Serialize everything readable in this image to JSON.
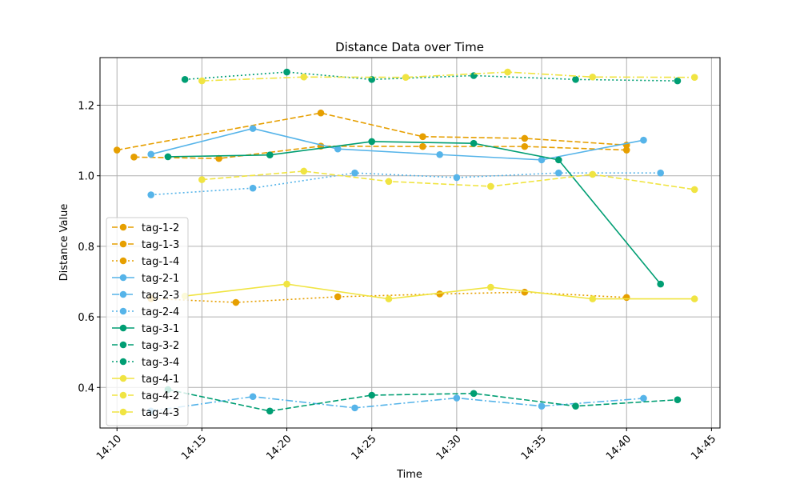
{
  "chart_data": {
    "type": "line",
    "title": "Distance Data over Time",
    "xlabel": "Time",
    "ylabel": "Distance Value",
    "xlim": [
      "14:09",
      "14:45:30"
    ],
    "ylim": [
      0.285,
      1.335
    ],
    "x_ticks": [
      "14:10",
      "14:15",
      "14:20",
      "14:25",
      "14:30",
      "14:35",
      "14:40",
      "14:45"
    ],
    "y_ticks": [
      0.4,
      0.6,
      0.8,
      1.0,
      1.2
    ],
    "grid": true,
    "legend_position": "lower-left",
    "colors": {
      "orange": "#E69F00",
      "blue": "#56B4E9",
      "green": "#009E73",
      "yellow": "#F0E442"
    },
    "series": [
      {
        "name": "tag-1-2",
        "color": "#E69F00",
        "style": "dashed",
        "x": [
          "14:10",
          "14:22",
          "14:28",
          "14:34",
          "14:40"
        ],
        "y": [
          1.073,
          1.178,
          1.111,
          1.106,
          1.087
        ]
      },
      {
        "name": "tag-1-3",
        "color": "#E69F00",
        "style": "dashed",
        "x": [
          "14:11",
          "14:16",
          "14:22",
          "14:28",
          "14:34",
          "14:40"
        ],
        "y": [
          1.053,
          1.049,
          1.084,
          1.083,
          1.083,
          1.073
        ]
      },
      {
        "name": "tag-1-4",
        "color": "#E69F00",
        "style": "dotted",
        "x": [
          "14:12",
          "14:17",
          "14:23",
          "14:29",
          "14:34",
          "14:40"
        ],
        "y": [
          0.652,
          0.641,
          0.657,
          0.665,
          0.67,
          0.655
        ]
      },
      {
        "name": "tag-2-1",
        "color": "#56B4E9",
        "style": "solid",
        "x": [
          "14:12",
          "14:18",
          "14:23",
          "14:29",
          "14:35",
          "14:41"
        ],
        "y": [
          1.061,
          1.134,
          1.076,
          1.06,
          1.045,
          1.101
        ]
      },
      {
        "name": "tag-2-3",
        "color": "#56B4E9",
        "style": "dashdot",
        "x": [
          "14:12",
          "14:18",
          "14:24",
          "14:30",
          "14:35",
          "14:41"
        ],
        "y": [
          0.333,
          0.374,
          0.342,
          0.37,
          0.347,
          0.369
        ]
      },
      {
        "name": "tag-2-4",
        "color": "#56B4E9",
        "style": "dotted",
        "x": [
          "14:12",
          "14:18",
          "14:24",
          "14:30",
          "14:36",
          "14:42"
        ],
        "y": [
          0.946,
          0.965,
          1.008,
          0.995,
          1.008,
          1.008
        ]
      },
      {
        "name": "tag-3-1",
        "color": "#009E73",
        "style": "solid",
        "x": [
          "14:13",
          "14:19",
          "14:25",
          "14:31",
          "14:36",
          "14:42"
        ],
        "y": [
          1.054,
          1.059,
          1.097,
          1.092,
          1.045,
          0.693
        ]
      },
      {
        "name": "tag-3-2",
        "color": "#009E73",
        "style": "dashed",
        "x": [
          "14:13",
          "14:19",
          "14:25",
          "14:31",
          "14:37",
          "14:43"
        ],
        "y": [
          0.394,
          0.333,
          0.378,
          0.383,
          0.347,
          0.365
        ]
      },
      {
        "name": "tag-3-4",
        "color": "#009E73",
        "style": "dotted",
        "x": [
          "14:14",
          "14:20",
          "14:25",
          "14:31",
          "14:37",
          "14:43"
        ],
        "y": [
          1.273,
          1.294,
          1.273,
          1.284,
          1.273,
          1.269
        ]
      },
      {
        "name": "tag-4-1",
        "color": "#F0E442",
        "style": "solid",
        "x": [
          "14:14",
          "14:20",
          "14:26",
          "14:32",
          "14:38",
          "14:44"
        ],
        "y": [
          0.659,
          0.693,
          0.651,
          0.684,
          0.651,
          0.651
        ]
      },
      {
        "name": "tag-4-2",
        "color": "#F0E442",
        "style": "dashed",
        "x": [
          "14:15",
          "14:21",
          "14:26",
          "14:32",
          "14:38",
          "14:44"
        ],
        "y": [
          0.989,
          1.013,
          0.984,
          0.97,
          1.004,
          0.961
        ]
      },
      {
        "name": "tag-4-3",
        "color": "#F0E442",
        "style": "dashdot",
        "x": [
          "14:15",
          "14:21",
          "14:27",
          "14:33",
          "14:38",
          "14:44"
        ],
        "y": [
          1.269,
          1.28,
          1.279,
          1.294,
          1.28,
          1.279
        ]
      }
    ]
  }
}
